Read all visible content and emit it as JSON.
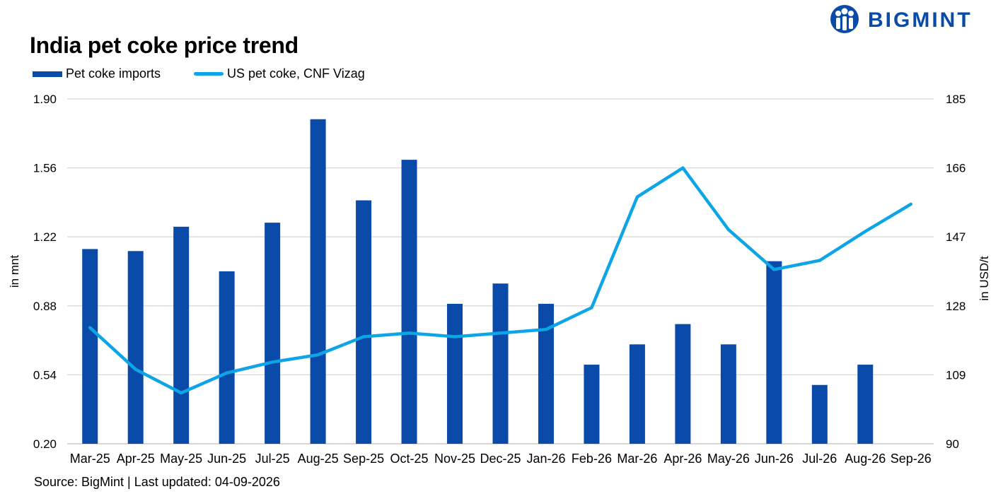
{
  "title": "India pet coke price trend",
  "logo": {
    "text": "BIGMINT",
    "color": "#0a4aa8"
  },
  "source": "Source: BigMint | Last updated: 04-09-2026",
  "chart_data": {
    "type": "bar+line",
    "categories": [
      "Mar-25",
      "Apr-25",
      "May-25",
      "Jun-25",
      "Jul-25",
      "Aug-25",
      "Sep-25",
      "Oct-25",
      "Nov-25",
      "Dec-25",
      "Jan-26",
      "Feb-26",
      "Mar-26",
      "Apr-26",
      "May-26",
      "Jun-26",
      "Jul-26",
      "Aug-26",
      "Sep-26"
    ],
    "series": [
      {
        "name": "Pet coke imports",
        "type": "bar",
        "axis": "left",
        "color": "#0a4aa8",
        "values": [
          1.16,
          1.15,
          1.27,
          1.05,
          1.29,
          1.8,
          1.4,
          1.6,
          0.89,
          0.99,
          0.89,
          0.59,
          0.69,
          0.79,
          0.69,
          1.1,
          0.49,
          0.59,
          null
        ]
      },
      {
        "name": "US pet coke, CNF Vizag",
        "type": "line",
        "axis": "right",
        "color": "#0ea5e6",
        "values": [
          122,
          110.5,
          104,
          109.5,
          112.5,
          114.5,
          119.5,
          120.5,
          119.5,
          120.5,
          121.5,
          127.5,
          158,
          166,
          149,
          138,
          140.5,
          148.5,
          156
        ]
      }
    ],
    "y_left": {
      "label": "in mnt",
      "ylim": [
        0.2,
        1.9
      ],
      "ticks": [
        "0.20",
        "0.54",
        "0.88",
        "1.22",
        "1.56",
        "1.90"
      ]
    },
    "y_right": {
      "label": "in USD/t",
      "ylim": [
        90,
        185
      ],
      "ticks": [
        "90",
        "109",
        "128",
        "147",
        "166",
        "185"
      ]
    },
    "grid": true,
    "legend_position": "top-left"
  }
}
